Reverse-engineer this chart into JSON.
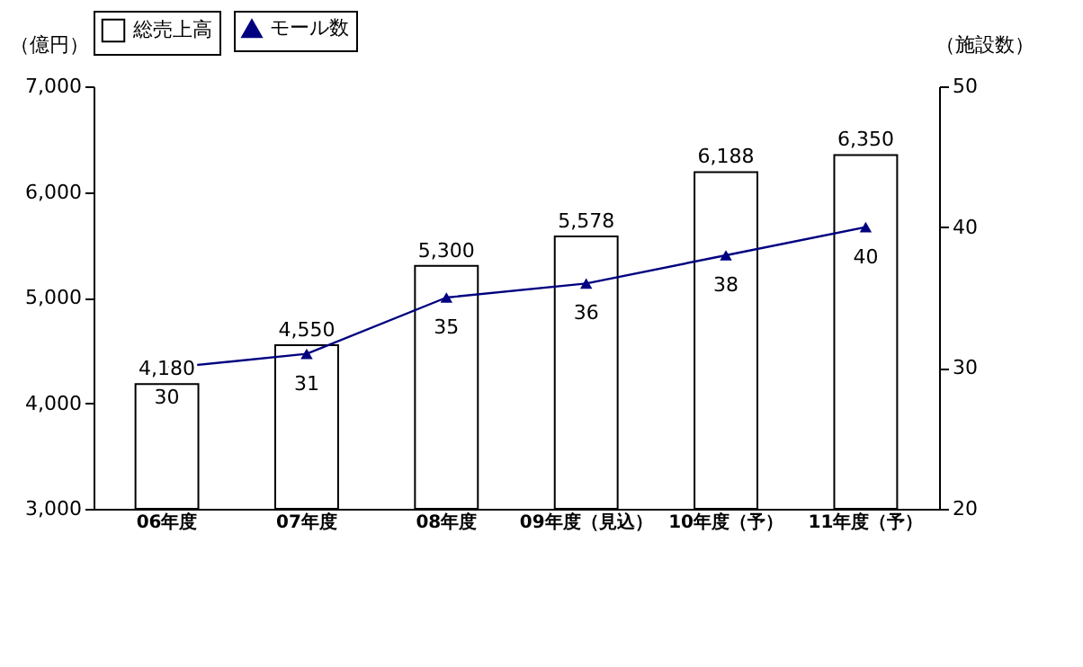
{
  "chart_data": {
    "type": "bar",
    "categories": [
      "06年度",
      "07年度",
      "08年度",
      "09年度（見込）",
      "10年度（予）",
      "11年度（予）"
    ],
    "series": [
      {
        "name": "総売上高",
        "color": "#ffffff",
        "values": [
          4180,
          4550,
          5300,
          5578,
          6188,
          6350
        ],
        "value_labels": [
          "4,180",
          "4,550",
          "5,300",
          "5,578",
          "6,188",
          "6,350"
        ]
      },
      {
        "name": "モール数",
        "type": "line",
        "axis": "y2",
        "color": "#000080",
        "marker": "triangle",
        "values": [
          30,
          31,
          35,
          36,
          38,
          40
        ],
        "value_labels": [
          "30",
          "31",
          "35",
          "36",
          "38",
          "40"
        ]
      }
    ],
    "ylabel": "（億円）",
    "y2label": "（施設数）",
    "ylim": [
      3000,
      7000
    ],
    "yticks": [
      {
        "value": 3000,
        "label": "3,000"
      },
      {
        "value": 4000,
        "label": "4,000"
      },
      {
        "value": 5000,
        "label": "5,000"
      },
      {
        "value": 6000,
        "label": "6,000"
      },
      {
        "value": 7000,
        "label": "7,000"
      }
    ],
    "y2lim": [
      20,
      50
    ],
    "y2ticks": [
      20,
      30,
      40,
      50
    ],
    "legend": "top",
    "grid": false
  }
}
